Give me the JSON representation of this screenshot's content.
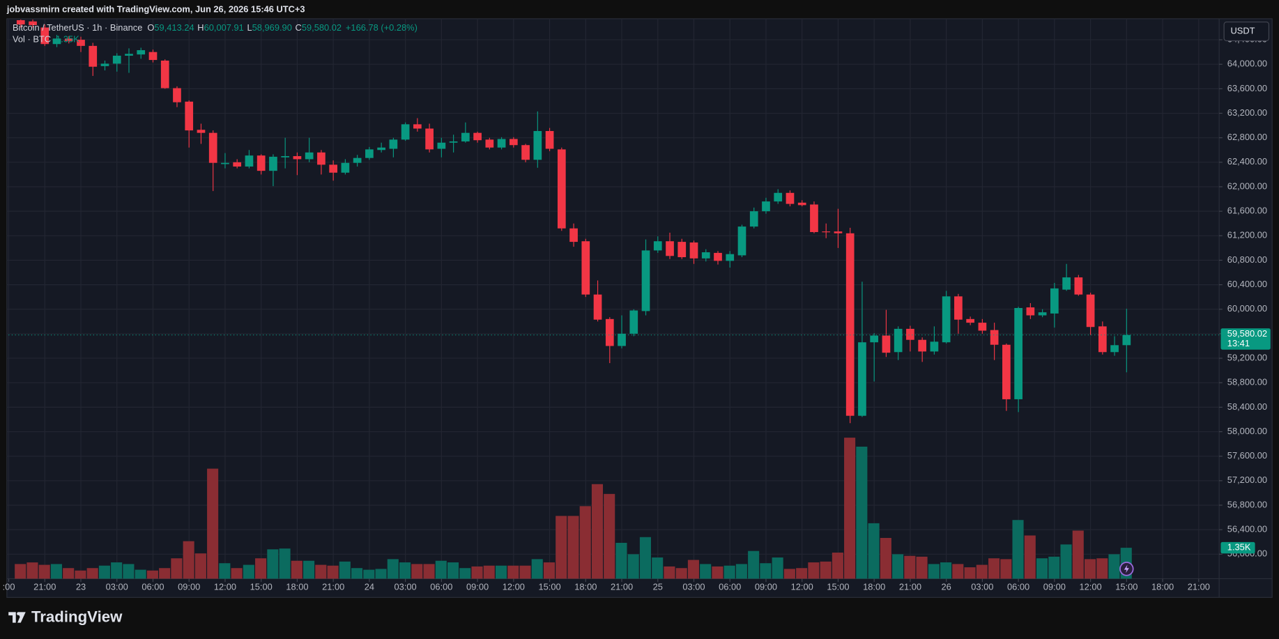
{
  "header": "jobvassmirn created with TradingView.com, Jun 26, 2026 15:46 UTC+3",
  "legend": {
    "symbol": "Bitcoin / TetherUS · 1h · Binance",
    "o": "O",
    "open": "59,413.24",
    "h": "H",
    "high": "60,007.91",
    "l": "L",
    "low": "58,969.90",
    "c": "C",
    "close": "59,580.02",
    "change": "+166.78 (+0.28%)",
    "vol": "Vol · BTC",
    "vol_value": "1.35K"
  },
  "currency": "USDT",
  "footer": "TradingView",
  "chart_data": {
    "type": "candlestick",
    "up_color": "#089981",
    "down_color": "#f23645",
    "volume_up_color": "#0b6b5f",
    "volume_down_color": "#8a2d33",
    "grid": true,
    "last_price_label": "59,580.02",
    "countdown": "13:41",
    "last_volume_label": "1.35K",
    "ylim": [
      55600,
      64730
    ],
    "volume_lim": [
      0,
      24420
    ],
    "xlim": [
      -1.02,
      99.7
    ],
    "yticks": [
      {
        "value": 56000,
        "label": "56,000.00"
      },
      {
        "value": 56400,
        "label": "56,400.00"
      },
      {
        "value": 56800,
        "label": "56,800.00"
      },
      {
        "value": 57200,
        "label": "57,200.00"
      },
      {
        "value": 57600,
        "label": "57,600.00"
      },
      {
        "value": 58000,
        "label": "58,000.00"
      },
      {
        "value": 58400,
        "label": "58,400.00"
      },
      {
        "value": 58800,
        "label": "58,800.00"
      },
      {
        "value": 59200,
        "label": "59,200.00"
      },
      {
        "value": 59600,
        "label": "59,600.00"
      },
      {
        "value": 60000,
        "label": "60,000.00"
      },
      {
        "value": 60400,
        "label": "60,400.00"
      },
      {
        "value": 60800,
        "label": "60,800.00"
      },
      {
        "value": 61200,
        "label": "61,200.00"
      },
      {
        "value": 61600,
        "label": "61,600.00"
      },
      {
        "value": 62000,
        "label": "62,000.00"
      },
      {
        "value": 62400,
        "label": "62,400.00"
      },
      {
        "value": 62800,
        "label": "62,800.00"
      },
      {
        "value": 63200,
        "label": "63,200.00"
      },
      {
        "value": 63600,
        "label": "63,600.00"
      },
      {
        "value": 64000,
        "label": "64,000.00"
      },
      {
        "value": 64400,
        "label": "64,400.00"
      }
    ],
    "xticks": [
      {
        "value": -1,
        "label": ":00"
      },
      {
        "value": 2,
        "label": "21:00"
      },
      {
        "value": 5,
        "label": "23"
      },
      {
        "value": 8,
        "label": "03:00"
      },
      {
        "value": 11,
        "label": "06:00"
      },
      {
        "value": 14,
        "label": "09:00"
      },
      {
        "value": 17,
        "label": "12:00"
      },
      {
        "value": 20,
        "label": "15:00"
      },
      {
        "value": 23,
        "label": "18:00"
      },
      {
        "value": 26,
        "label": "21:00"
      },
      {
        "value": 29,
        "label": "24"
      },
      {
        "value": 32,
        "label": "03:00"
      },
      {
        "value": 35,
        "label": "06:00"
      },
      {
        "value": 38,
        "label": "09:00"
      },
      {
        "value": 41,
        "label": "12:00"
      },
      {
        "value": 44,
        "label": "15:00"
      },
      {
        "value": 47,
        "label": "18:00"
      },
      {
        "value": 50,
        "label": "21:00"
      },
      {
        "value": 53,
        "label": "25"
      },
      {
        "value": 56,
        "label": "03:00"
      },
      {
        "value": 59,
        "label": "06:00"
      },
      {
        "value": 62,
        "label": "09:00"
      },
      {
        "value": 65,
        "label": "12:00"
      },
      {
        "value": 68,
        "label": "15:00"
      },
      {
        "value": 71,
        "label": "18:00"
      },
      {
        "value": 74,
        "label": "21:00"
      },
      {
        "value": 77,
        "label": "26"
      },
      {
        "value": 80,
        "label": "03:00"
      },
      {
        "value": 83,
        "label": "06:00"
      },
      {
        "value": 86,
        "label": "09:00"
      },
      {
        "value": 89,
        "label": "12:00"
      },
      {
        "value": 92,
        "label": "15:00"
      },
      {
        "value": 95,
        "label": "18:00"
      },
      {
        "value": 98,
        "label": "21:00"
      }
    ],
    "open": [
      64720,
      64700,
      64600,
      64330,
      64420,
      64400,
      64300,
      63970,
      64010,
      64140,
      64160,
      64200,
      64060,
      63610,
      63390,
      62930,
      62880,
      62370,
      62400,
      62330,
      62510,
      62260,
      62480,
      62500,
      62450,
      62560,
      62360,
      62230,
      62390,
      62470,
      62600,
      62620,
      62770,
      63020,
      62950,
      62620,
      62720,
      62740,
      62880,
      62770,
      62640,
      62780,
      62680,
      62440,
      62910,
      62610,
      61320,
      61110,
      60240,
      59840,
      59400,
      59600,
      59970,
      60960,
      61110,
      61100,
      61090,
      60830,
      60920,
      60790,
      60880,
      61350,
      61600,
      61760,
      61900,
      61740,
      61710,
      61270,
      61270,
      61240,
      58260,
      59460,
      59570,
      59300,
      59680,
      59500,
      59310,
      59460,
      60210,
      59840,
      59780,
      59660,
      59420,
      58530,
      60030,
      59900,
      59930,
      60320,
      60520,
      60240,
      59720,
      59300,
      59413.24
    ],
    "high": [
      64730,
      64730,
      64650,
      64480,
      64460,
      64450,
      64350,
      64060,
      64180,
      64260,
      64270,
      64240,
      64080,
      63640,
      63410,
      63030,
      62920,
      62550,
      62450,
      62600,
      62530,
      62530,
      62800,
      62560,
      62800,
      62600,
      62430,
      62450,
      62520,
      62650,
      62720,
      62800,
      63050,
      63120,
      63030,
      62800,
      62850,
      63050,
      62900,
      62800,
      62810,
      62810,
      62700,
      63230,
      62960,
      62640,
      61400,
      61150,
      60470,
      59870,
      59900,
      60000,
      61140,
      61190,
      61250,
      61150,
      61120,
      60980,
      60950,
      60950,
      61380,
      61660,
      61820,
      61960,
      61940,
      61780,
      61760,
      61400,
      61640,
      61330,
      60450,
      59610,
      59990,
      59720,
      59730,
      59540,
      59720,
      60300,
      60250,
      59880,
      59840,
      59780,
      59440,
      60040,
      60100,
      60000,
      60430,
      60740,
      60560,
      60270,
      59800,
      59560,
      60007.91
    ],
    "low": [
      64600,
      64600,
      64300,
      64280,
      64340,
      64200,
      63810,
      63900,
      63880,
      63860,
      64090,
      64030,
      63600,
      63300,
      62640,
      62700,
      61930,
      62300,
      62300,
      62300,
      62200,
      62010,
      62300,
      62190,
      62400,
      62200,
      62100,
      62200,
      62330,
      62440,
      62560,
      62480,
      62750,
      62900,
      62560,
      62480,
      62560,
      62720,
      62720,
      62610,
      62610,
      62640,
      62400,
      62310,
      62580,
      61280,
      61020,
      60200,
      59800,
      59120,
      59360,
      59560,
      59900,
      60920,
      60820,
      60820,
      60740,
      60780,
      60730,
      60680,
      60850,
      61320,
      61560,
      61720,
      61680,
      61680,
      61240,
      61160,
      61000,
      58140,
      58240,
      58820,
      59220,
      59170,
      59310,
      59140,
      59260,
      59440,
      59600,
      59740,
      59600,
      59170,
      58340,
      58320,
      59840,
      59870,
      59700,
      60300,
      60220,
      59580,
      59260,
      59240,
      58969.9
    ],
    "close": [
      64650,
      64640,
      64330,
      64420,
      64380,
      64300,
      63960,
      64010,
      64140,
      64170,
      64230,
      64070,
      63610,
      63380,
      62920,
      62880,
      62390,
      62390,
      62330,
      62510,
      62260,
      62490,
      62500,
      62450,
      62560,
      62360,
      62230,
      62390,
      62470,
      62610,
      62640,
      62770,
      63020,
      62950,
      62610,
      62720,
      62740,
      62880,
      62760,
      62640,
      62780,
      62680,
      62440,
      62910,
      62620,
      61320,
      61100,
      60240,
      59830,
      59400,
      59600,
      59980,
      60960,
      61110,
      60870,
      60850,
      60830,
      60930,
      60790,
      60900,
      61350,
      61600,
      61760,
      61900,
      61720,
      61700,
      61260,
      61260,
      61240,
      58260,
      59460,
      59570,
      59290,
      59680,
      59500,
      59310,
      59470,
      60210,
      59830,
      59780,
      59650,
      59420,
      58530,
      60020,
      59900,
      59950,
      60340,
      60520,
      60240,
      59710,
      59300,
      59413.24,
      59580.02
    ],
    "volume": [
      640,
      710,
      605,
      640,
      463,
      356,
      463,
      570,
      712,
      640,
      392,
      356,
      463,
      890,
      1638,
      1104,
      4806,
      676,
      463,
      605,
      890,
      1282,
      1317,
      783,
      783,
      605,
      570,
      748,
      463,
      392,
      427,
      854,
      712,
      640,
      640,
      783,
      712,
      463,
      534,
      570,
      570,
      570,
      570,
      854,
      712,
      2741,
      2741,
      3168,
      4130,
      3702,
      1566,
      1068,
      1816,
      926,
      534,
      463,
      819,
      640,
      534,
      570,
      640,
      1210,
      676,
      926,
      427,
      463,
      712,
      748,
      1139,
      6159,
      5767,
      2421,
      1780,
      1068,
      997,
      961,
      640,
      712,
      640,
      498,
      605,
      890,
      854,
      2563,
      1887,
      890,
      961,
      1495,
      2100,
      854,
      890,
      1068,
      1350
    ]
  }
}
